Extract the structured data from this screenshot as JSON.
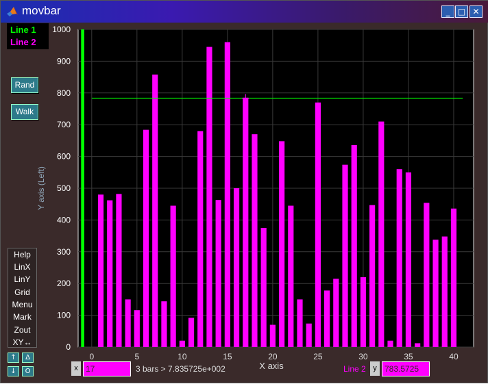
{
  "window": {
    "title": "movbar"
  },
  "legend": [
    {
      "label": "Line 1",
      "color": "#00ff00"
    },
    {
      "label": "Line 2",
      "color": "#ff00ff"
    }
  ],
  "buttons": {
    "rand": "Rand",
    "walk": "Walk"
  },
  "menu": [
    "Help",
    "LinX",
    "LinY",
    "Grid",
    "Menu",
    "Mark",
    "Zout",
    "XY↔"
  ],
  "small_buttons": [
    "↑",
    "Δ",
    "↓",
    "O"
  ],
  "bottom": {
    "x_tag": "x",
    "x_value": "17",
    "readout": "3 bars > 7.835725e+002",
    "line_label": "Line 2",
    "y_tag": "y",
    "y_value": "783.5725"
  },
  "chart_data": {
    "type": "bar",
    "xlabel": "X axis",
    "ylabel": "Y axis (Left)",
    "xlim": [
      -1.5,
      42.2
    ],
    "ylim": [
      0,
      1000
    ],
    "xticks": [
      0,
      5,
      10,
      15,
      20,
      25,
      30,
      35,
      40
    ],
    "yticks": [
      0,
      100,
      200,
      300,
      400,
      500,
      600,
      700,
      800,
      900,
      1000
    ],
    "grid": true,
    "series": [
      {
        "name": "Line 1",
        "color": "#00ff00",
        "x": [
          -1
        ],
        "values": [
          1000
        ]
      },
      {
        "name": "Line 2",
        "color": "#ff00ff",
        "x": [
          1,
          2,
          3,
          4,
          5,
          6,
          7,
          8,
          9,
          10,
          11,
          12,
          13,
          14,
          15,
          16,
          17,
          18,
          19,
          20,
          21,
          22,
          23,
          24,
          25,
          26,
          27,
          28,
          29,
          30,
          31,
          32,
          33,
          34,
          35,
          36,
          37,
          38,
          39,
          40
        ],
        "values": [
          480,
          462,
          482,
          150,
          116,
          684,
          858,
          144,
          445,
          20,
          92,
          680,
          945,
          463,
          960,
          500,
          785,
          670,
          375,
          70,
          648,
          445,
          150,
          74,
          770,
          178,
          215,
          574,
          636,
          220,
          447,
          710,
          20,
          560,
          550,
          12,
          454,
          338,
          348,
          436
        ]
      }
    ],
    "hline": {
      "y": 783.5725,
      "color": "#00ff00"
    },
    "marker": {
      "x": 17,
      "y": 783.5725
    }
  }
}
